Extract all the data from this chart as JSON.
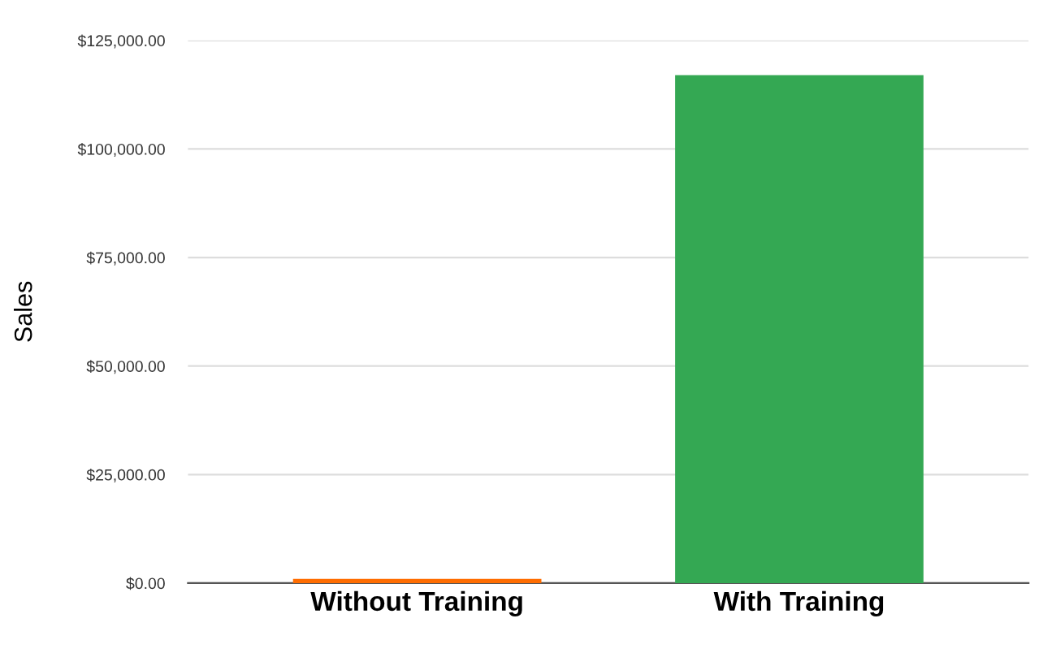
{
  "chart_data": {
    "type": "bar",
    "ylabel": "Sales",
    "categories": [
      "Without Training",
      "With Training"
    ],
    "values": [
      1000,
      117000
    ],
    "colors": [
      "#ff6d01",
      "#34a853"
    ],
    "ylim": [
      0,
      125000
    ],
    "yticks": [
      {
        "value": 0,
        "label": "$0.00"
      },
      {
        "value": 25000,
        "label": "$25,000.00"
      },
      {
        "value": 50000,
        "label": "$50,000.00"
      },
      {
        "value": 75000,
        "label": "$75,000.00"
      },
      {
        "value": 100000,
        "label": "$100,000.00"
      },
      {
        "value": 125000,
        "label": "$125,000.00"
      }
    ],
    "grid": "y"
  }
}
